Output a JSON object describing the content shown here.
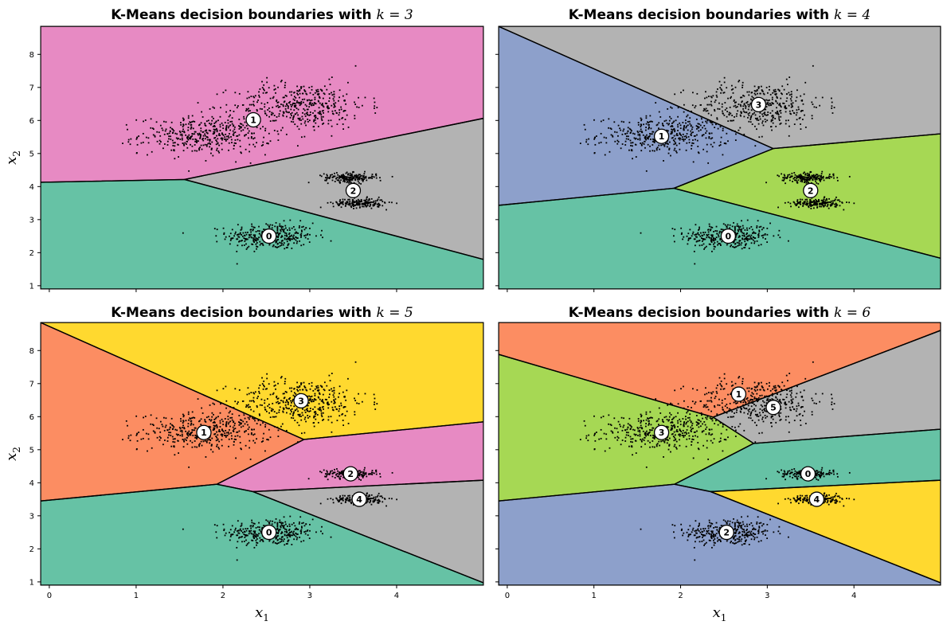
{
  "figure": {
    "xlabel_base": "x",
    "xlabel_sub": "1",
    "ylabel_base": "x",
    "ylabel_sub": "2"
  },
  "chart_data": [
    {
      "type": "scatter",
      "title_prefix": "K-Means decision boundaries with ",
      "title_math": "k = 3",
      "k": 3,
      "xlim": [
        -0.1,
        5.0
      ],
      "ylim": [
        0.9,
        8.85
      ],
      "xticks": [
        "0",
        "1",
        "2",
        "3",
        "4"
      ],
      "yticks": [
        "1",
        "2",
        "3",
        "4",
        "5",
        "6",
        "7",
        "8"
      ],
      "show_xticklabels": false,
      "show_yticklabels": true,
      "show_xlabel": false,
      "show_ylabel": true,
      "region_colors": {
        "0": "#66c2a5",
        "1": "#e78ac3",
        "2": "#b3b3b3"
      },
      "centroids": [
        {
          "label": "0",
          "x": 2.53,
          "y": 2.5
        },
        {
          "label": "1",
          "x": 2.35,
          "y": 6.02
        },
        {
          "label": "2",
          "x": 3.5,
          "y": 3.88
        }
      ]
    },
    {
      "type": "scatter",
      "title_prefix": "K-Means decision boundaries with ",
      "title_math": "k = 4",
      "k": 4,
      "xlim": [
        -0.1,
        5.0
      ],
      "ylim": [
        0.9,
        8.85
      ],
      "xticks": [
        "0",
        "1",
        "2",
        "3",
        "4"
      ],
      "yticks": [
        "1",
        "2",
        "3",
        "4",
        "5",
        "6",
        "7",
        "8"
      ],
      "show_xticklabels": false,
      "show_yticklabels": false,
      "show_xlabel": false,
      "show_ylabel": false,
      "region_colors": {
        "0": "#66c2a5",
        "1": "#8da0cb",
        "2": "#a6d854",
        "3": "#b3b3b3"
      },
      "centroids": [
        {
          "label": "0",
          "x": 2.55,
          "y": 2.5
        },
        {
          "label": "1",
          "x": 1.78,
          "y": 5.52
        },
        {
          "label": "2",
          "x": 3.5,
          "y": 3.88
        },
        {
          "label": "3",
          "x": 2.9,
          "y": 6.48
        }
      ]
    },
    {
      "type": "scatter",
      "title_prefix": "K-Means decision boundaries with ",
      "title_math": "k = 5",
      "k": 5,
      "xlim": [
        -0.1,
        5.0
      ],
      "ylim": [
        0.9,
        8.85
      ],
      "xticks": [
        "0",
        "1",
        "2",
        "3",
        "4"
      ],
      "yticks": [
        "1",
        "2",
        "3",
        "4",
        "5",
        "6",
        "7",
        "8"
      ],
      "show_xticklabels": true,
      "show_yticklabels": true,
      "show_xlabel": true,
      "show_ylabel": true,
      "region_colors": {
        "0": "#66c2a5",
        "1": "#fc8d62",
        "2": "#e78ac3",
        "3": "#ffd92f",
        "4": "#b3b3b3"
      },
      "centroids": [
        {
          "label": "0",
          "x": 2.53,
          "y": 2.5
        },
        {
          "label": "1",
          "x": 1.78,
          "y": 5.52
        },
        {
          "label": "2",
          "x": 3.47,
          "y": 4.27
        },
        {
          "label": "3",
          "x": 2.9,
          "y": 6.48
        },
        {
          "label": "4",
          "x": 3.57,
          "y": 3.5
        }
      ]
    },
    {
      "type": "scatter",
      "title_prefix": "K-Means decision boundaries with ",
      "title_math": "k = 6",
      "k": 6,
      "xlim": [
        -0.1,
        5.0
      ],
      "ylim": [
        0.9,
        8.85
      ],
      "xticks": [
        "0",
        "1",
        "2",
        "3",
        "4"
      ],
      "yticks": [
        "1",
        "2",
        "3",
        "4",
        "5",
        "6",
        "7",
        "8"
      ],
      "show_xticklabels": true,
      "show_yticklabels": false,
      "show_xlabel": true,
      "show_ylabel": false,
      "region_colors": {
        "0": "#66c2a5",
        "1": "#fc8d62",
        "2": "#8da0cb",
        "3": "#a6d854",
        "4": "#ffd92f",
        "5": "#b3b3b3"
      },
      "centroids": [
        {
          "label": "0",
          "x": 3.47,
          "y": 4.27
        },
        {
          "label": "1",
          "x": 2.67,
          "y": 6.68
        },
        {
          "label": "2",
          "x": 2.53,
          "y": 2.5
        },
        {
          "label": "3",
          "x": 1.78,
          "y": 5.52
        },
        {
          "label": "4",
          "x": 3.57,
          "y": 3.5
        },
        {
          "label": "5",
          "x": 3.07,
          "y": 6.28
        }
      ]
    }
  ]
}
